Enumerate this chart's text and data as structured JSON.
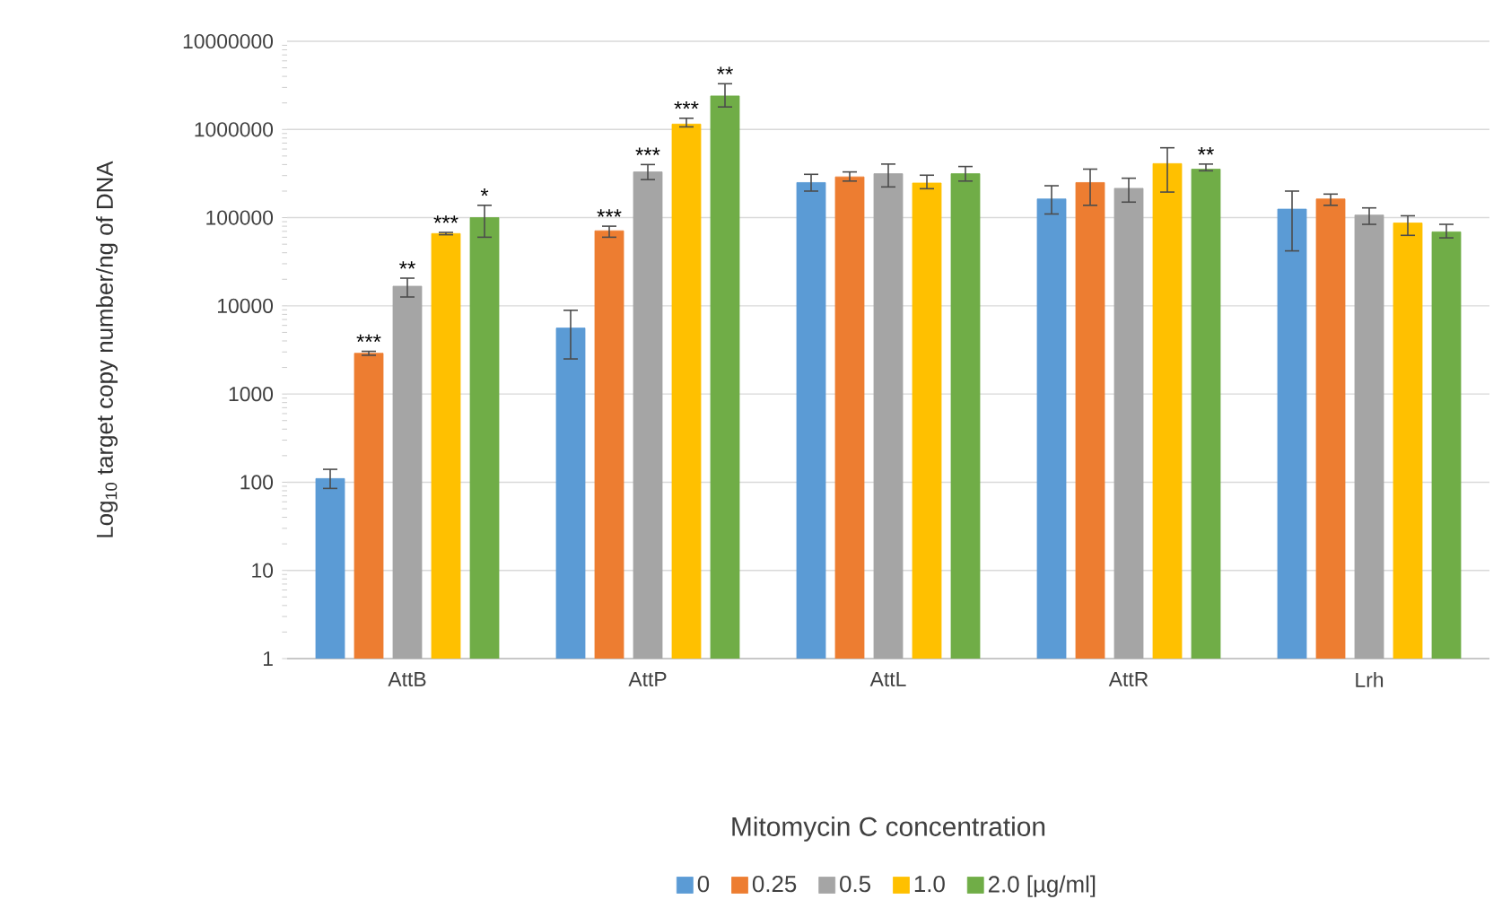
{
  "chart_data": {
    "type": "bar",
    "xlabel": "Mitomycin C concentration",
    "ylabel": "Log$_{10}$ target copy number/ng of DNA",
    "categories": [
      "AttB",
      "AttP",
      "AttL",
      "AttR",
      "Lrh"
    ],
    "log": true,
    "ylim": [
      1,
      10000000
    ],
    "yticks": [
      1,
      10,
      100,
      1000,
      10000,
      100000,
      1000000,
      10000000
    ],
    "grid": "y",
    "legend": "bottom",
    "series": [
      {
        "name": "0",
        "color": "#5b9bd5",
        "values": [
          110,
          5600,
          250000,
          163000,
          125000
        ],
        "errors": [
          [
            85,
            140
          ],
          [
            2500,
            8900
          ],
          [
            200000,
            310000
          ],
          [
            110000,
            230000
          ],
          [
            42000,
            200000
          ]
        ],
        "value_labels": [
          null,
          null,
          null,
          null,
          null
        ]
      },
      {
        "name": "0.25",
        "color": "#ed7d31",
        "values": [
          2900,
          71000,
          290000,
          250000,
          163000
        ],
        "errors": [
          [
            2750,
            3050
          ],
          [
            60000,
            80000
          ],
          [
            260000,
            330000
          ],
          [
            138000,
            355000
          ],
          [
            138000,
            185000
          ]
        ],
        "value_labels": [
          "***",
          "***",
          null,
          null,
          null
        ]
      },
      {
        "name": "0.5",
        "color": "#a5a5a5",
        "values": [
          16700,
          330000,
          315000,
          215000,
          107000
        ],
        "errors": [
          [
            12600,
            20600
          ],
          [
            270000,
            400000
          ],
          [
            223000,
            405000
          ],
          [
            150000,
            280000
          ],
          [
            84000,
            129000
          ]
        ],
        "value_labels": [
          "**",
          "***",
          null,
          null,
          null
        ]
      },
      {
        "name": "1.0",
        "color": "#ffc000",
        "values": [
          66000,
          1150000,
          247000,
          410000,
          87000
        ],
        "errors": [
          [
            64000,
            68000
          ],
          [
            1070000,
            1340000
          ],
          [
            213000,
            303000
          ],
          [
            195000,
            620000
          ],
          [
            63000,
            105000
          ]
        ],
        "value_labels": [
          "***",
          "***",
          null,
          null,
          null
        ]
      },
      {
        "name": "2.0 [µg/ml]",
        "color": "#70ad47",
        "values": [
          100000,
          2400000,
          315000,
          355000,
          69000
        ],
        "errors": [
          [
            60000,
            138000
          ],
          [
            1800000,
            3300000
          ],
          [
            260000,
            380000
          ],
          [
            340000,
            405000
          ],
          [
            59000,
            84000
          ]
        ],
        "value_labels": [
          "*",
          "**",
          null,
          "**",
          null
        ]
      }
    ]
  }
}
